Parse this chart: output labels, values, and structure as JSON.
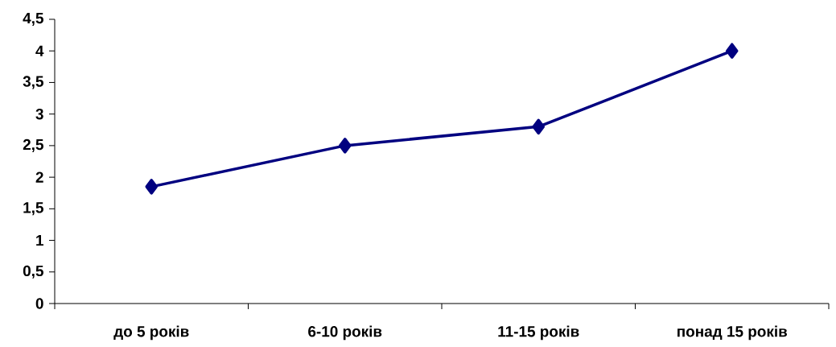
{
  "chart_data": {
    "type": "line",
    "categories": [
      "до 5 років",
      "6-10 років",
      "11-15 років",
      "понад 15 років"
    ],
    "values": [
      1.85,
      2.5,
      2.8,
      4
    ],
    "color": "#000080",
    "marker": "diamond",
    "line_style": "solid",
    "ylim": [
      0,
      4.5
    ],
    "yticks": [
      0,
      {
        "value": 0.5,
        "label": "0,5"
      },
      1,
      {
        "value": 1.5,
        "label": "1,5"
      },
      2,
      {
        "value": 2.5,
        "label": "2,5"
      },
      3,
      {
        "value": 3.5,
        "label": "3,5"
      },
      4,
      {
        "value": 4.5,
        "label": "4,5"
      }
    ]
  }
}
